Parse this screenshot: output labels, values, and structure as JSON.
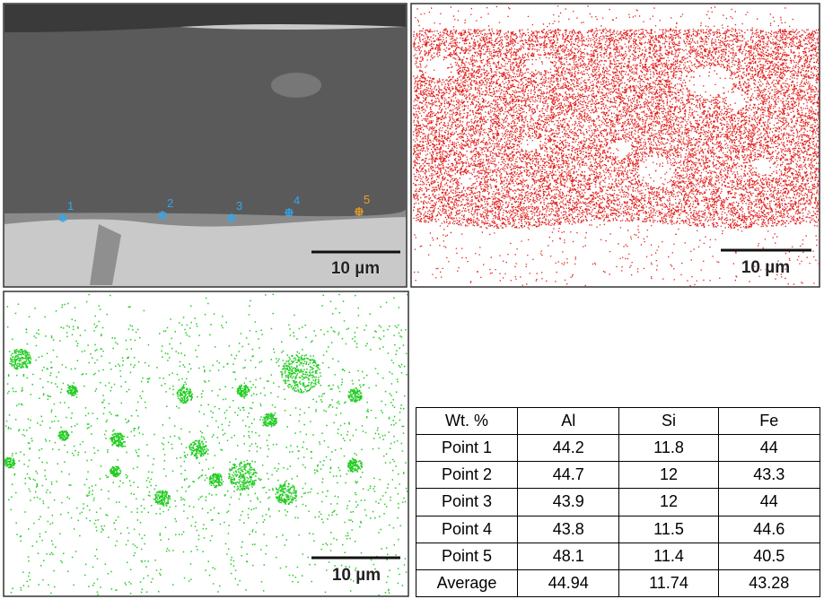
{
  "sem_image": {
    "points": [
      "1",
      "2",
      "3",
      "4",
      "5"
    ],
    "scale_bar": "10 µm"
  },
  "red_map": {
    "scale_bar": "10 µm"
  },
  "green_map": {
    "scale_bar": "10 µm"
  },
  "table": {
    "header": [
      "Wt. %",
      "Al",
      "Si",
      "Fe"
    ],
    "rows": [
      [
        "Point 1",
        44.2,
        11.8,
        44
      ],
      [
        "Point 2",
        44.7,
        12,
        43.3
      ],
      [
        "Point 3",
        43.9,
        12,
        44
      ],
      [
        "Point 4",
        43.8,
        11.5,
        44.6
      ],
      [
        "Point 5",
        48.1,
        11.4,
        40.5
      ],
      [
        "Average",
        44.94,
        11.74,
        43.28
      ]
    ]
  }
}
